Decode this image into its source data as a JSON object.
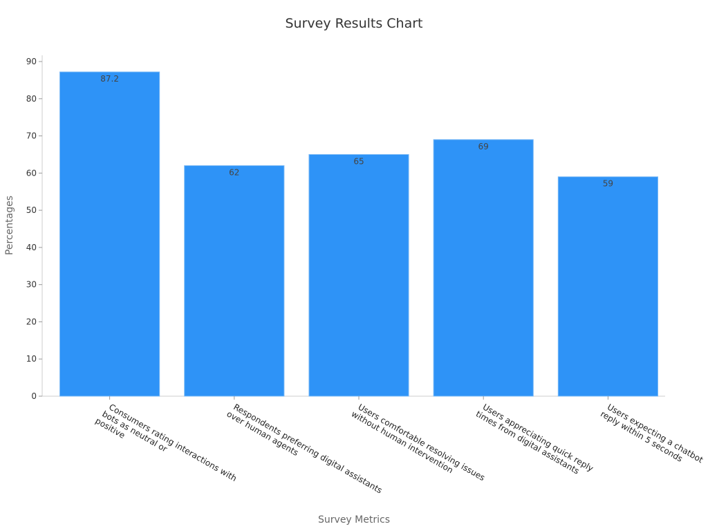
{
  "chart_data": {
    "type": "bar",
    "title": "Survey Results Chart",
    "xlabel": "Survey Metrics",
    "ylabel": "Percentages",
    "ylim": [
      0,
      90
    ],
    "yticks": [
      0,
      10,
      20,
      30,
      40,
      50,
      60,
      70,
      80,
      90
    ],
    "categories": [
      [
        "Consumers rating interactions with",
        "bots as neutral or",
        "positive"
      ],
      [
        "Respondents preferring digital assistants",
        "over human agents"
      ],
      [
        "Users comfortable resolving issues",
        "without human intervention"
      ],
      [
        "Users appreciating quick reply",
        "times from digital assistants"
      ],
      [
        "Users expecting a chatbot",
        "reply within 5 seconds"
      ]
    ],
    "values": [
      87.2,
      62,
      65,
      69,
      59
    ],
    "data_labels": [
      "87.2",
      "62",
      "65",
      "69",
      "59"
    ],
    "bar_color": "#2e93f7",
    "bar_edge_color": "#78b8f5",
    "grid": false,
    "legend": "none"
  }
}
